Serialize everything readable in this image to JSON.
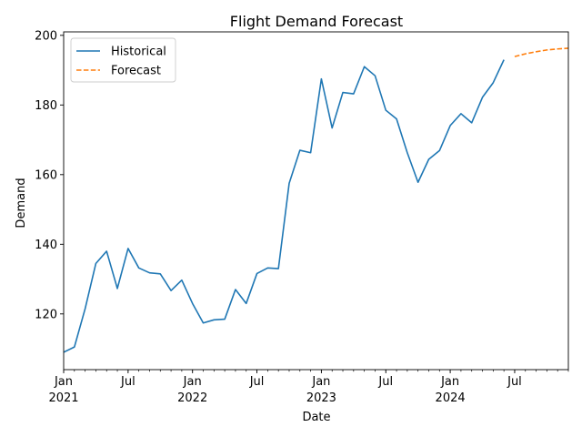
{
  "chart_data": {
    "type": "line",
    "title": "Flight Demand Forecast",
    "xlabel": "Date",
    "ylabel": "Demand",
    "xlim": [
      "2021-01",
      "2024-12"
    ],
    "ylim": [
      104,
      201
    ],
    "y_ticks": [
      120,
      140,
      160,
      180,
      200
    ],
    "x_ticks": [
      {
        "date": "2021-01",
        "label": "Jan",
        "year": "2021"
      },
      {
        "date": "2021-07",
        "label": "Jul",
        "year": ""
      },
      {
        "date": "2022-01",
        "label": "Jan",
        "year": "2022"
      },
      {
        "date": "2022-07",
        "label": "Jul",
        "year": ""
      },
      {
        "date": "2023-01",
        "label": "Jan",
        "year": "2023"
      },
      {
        "date": "2023-07",
        "label": "Jul",
        "year": ""
      },
      {
        "date": "2024-01",
        "label": "Jan",
        "year": "2024"
      },
      {
        "date": "2024-07",
        "label": "Jul",
        "year": ""
      }
    ],
    "grid": false,
    "legend_position": "upper-left",
    "series": [
      {
        "name": "Historical",
        "color": "#1f77b4",
        "style": "solid",
        "x": [
          "2021-01",
          "2021-02",
          "2021-03",
          "2021-04",
          "2021-05",
          "2021-06",
          "2021-07",
          "2021-08",
          "2021-09",
          "2021-10",
          "2021-11",
          "2021-12",
          "2022-01",
          "2022-02",
          "2022-03",
          "2022-04",
          "2022-05",
          "2022-06",
          "2022-07",
          "2022-08",
          "2022-09",
          "2022-10",
          "2022-11",
          "2022-12",
          "2023-01",
          "2023-02",
          "2023-03",
          "2023-04",
          "2023-05",
          "2023-06",
          "2023-07",
          "2023-08",
          "2023-09",
          "2023-10",
          "2023-11",
          "2023-12",
          "2024-01",
          "2024-02",
          "2024-03",
          "2024-04",
          "2024-05",
          "2024-06"
        ],
        "values": [
          109,
          110.5,
          121.5,
          134.5,
          138,
          127.3,
          138.8,
          133.2,
          131.8,
          131.5,
          126.7,
          129.7,
          123,
          117.4,
          118.3,
          118.5,
          127,
          123,
          131.6,
          133.2,
          133,
          157.5,
          167,
          166.3,
          187.5,
          173.4,
          183.6,
          183.2,
          191,
          188.4,
          178.5,
          176,
          166.3,
          157.8,
          164.4,
          166.9,
          174.1,
          177.5,
          174.9,
          182.2,
          186.4,
          193
        ]
      },
      {
        "name": "Forecast",
        "color": "#ff7f0e",
        "style": "dashed",
        "x": [
          "2024-07",
          "2024-08",
          "2024-09",
          "2024-10",
          "2024-11",
          "2024-12",
          "2025-01"
        ],
        "values": [
          193.9,
          194.7,
          195.3,
          195.8,
          196.1,
          196.3,
          196.4
        ]
      }
    ]
  }
}
